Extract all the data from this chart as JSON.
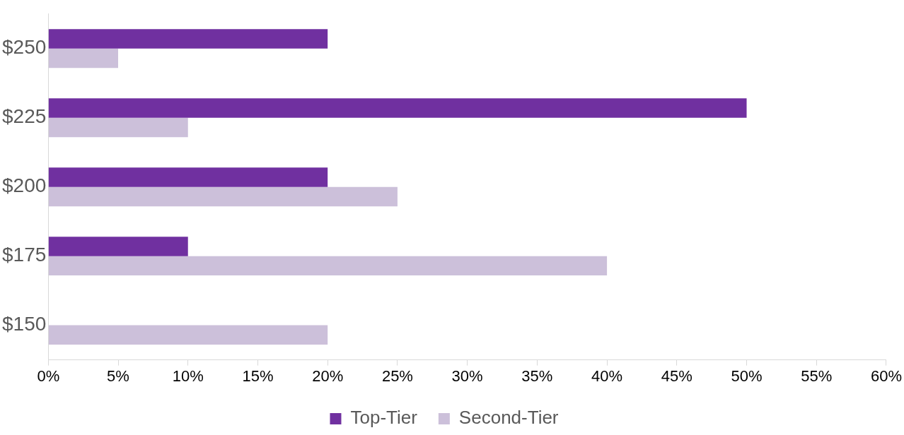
{
  "chart_data": {
    "type": "bar",
    "orientation": "horizontal",
    "categories": [
      "$250",
      "$225",
      "$200",
      "$175",
      "$150"
    ],
    "series": [
      {
        "name": "Top-Tier",
        "color": "#7030a0",
        "values": [
          20,
          50,
          20,
          10,
          0
        ]
      },
      {
        "name": "Second-Tier",
        "color": "#ccc0da",
        "values": [
          5,
          10,
          25,
          40,
          20
        ]
      }
    ],
    "xlim": [
      0,
      60
    ],
    "xticks": [
      {
        "value": 0,
        "label": "0%"
      },
      {
        "value": 5,
        "label": "5%"
      },
      {
        "value": 10,
        "label": "10%"
      },
      {
        "value": 15,
        "label": "15%"
      },
      {
        "value": 20,
        "label": "20%"
      },
      {
        "value": 25,
        "label": "25%"
      },
      {
        "value": 30,
        "label": "30%"
      },
      {
        "value": 35,
        "label": "35%"
      },
      {
        "value": 40,
        "label": "40%"
      },
      {
        "value": 45,
        "label": "45%"
      },
      {
        "value": 50,
        "label": "50%"
      },
      {
        "value": 55,
        "label": "55%"
      },
      {
        "value": 60,
        "label": "60%"
      }
    ],
    "grid": false,
    "legend": "bottom"
  }
}
